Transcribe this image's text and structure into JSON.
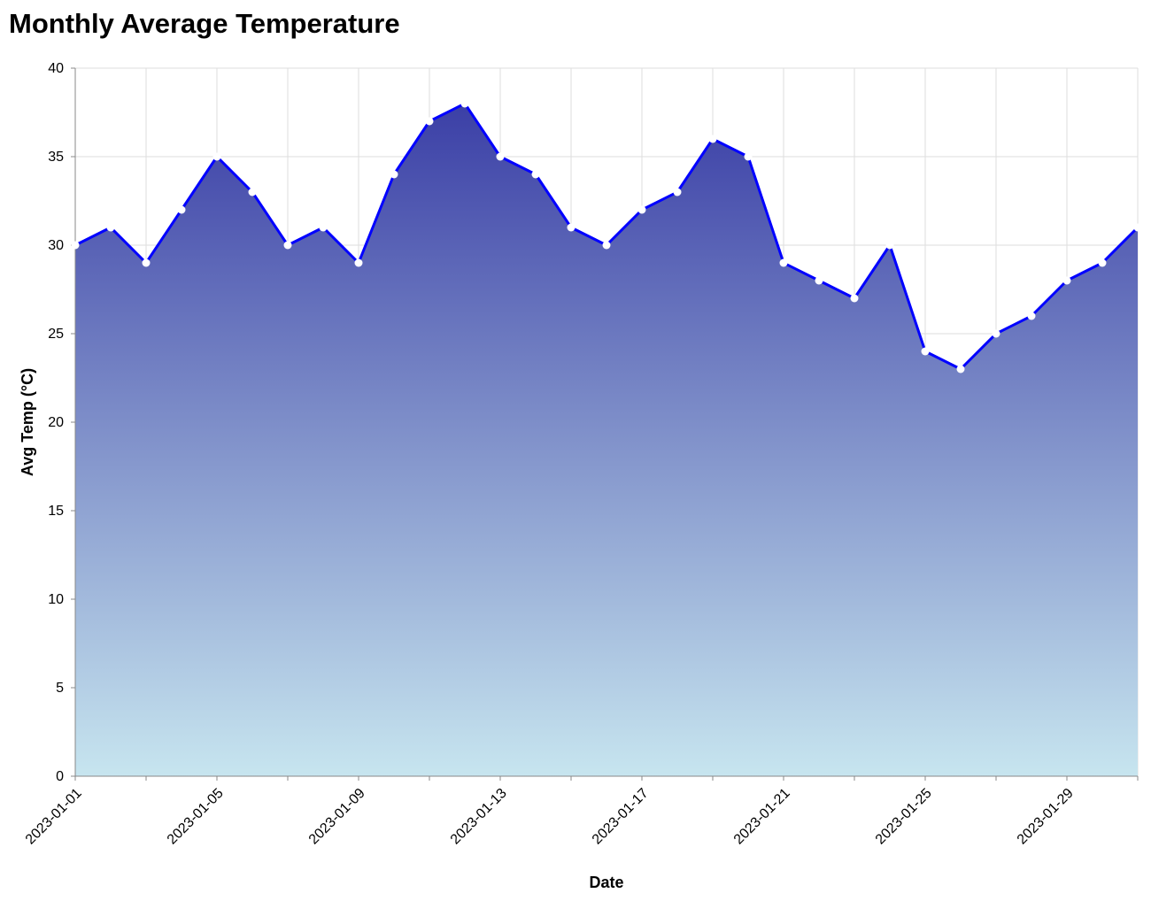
{
  "chart_data": {
    "type": "area",
    "title": "Monthly Average Temperature",
    "xlabel": "Date",
    "ylabel": "Avg Temp (°C)",
    "ylim": [
      0,
      40
    ],
    "y_ticks": [
      0,
      5,
      10,
      15,
      20,
      25,
      30,
      35,
      40
    ],
    "x_tick_labels": [
      "2023-01-01",
      "2023-01-05",
      "2023-01-09",
      "2023-01-13",
      "2023-01-17",
      "2023-01-21",
      "2023-01-25",
      "2023-01-29"
    ],
    "grid": true,
    "colors": {
      "line": "#0000ff",
      "area_top": "#3b3fa6",
      "area_bottom": "#c7e5ef",
      "point_fill": "#ffffff",
      "grid": "#dddddd",
      "axis": "#888888"
    },
    "x": [
      "2023-01-01",
      "2023-01-02",
      "2023-01-03",
      "2023-01-04",
      "2023-01-05",
      "2023-01-06",
      "2023-01-07",
      "2023-01-08",
      "2023-01-09",
      "2023-01-10",
      "2023-01-11",
      "2023-01-12",
      "2023-01-13",
      "2023-01-14",
      "2023-01-15",
      "2023-01-16",
      "2023-01-17",
      "2023-01-18",
      "2023-01-19",
      "2023-01-20",
      "2023-01-21",
      "2023-01-22",
      "2023-01-23",
      "2023-01-24",
      "2023-01-25",
      "2023-01-26",
      "2023-01-27",
      "2023-01-28",
      "2023-01-29",
      "2023-01-30",
      "2023-01-31"
    ],
    "values": [
      30,
      31,
      29,
      32,
      35,
      33,
      30,
      31,
      29,
      34,
      37,
      38,
      35,
      34,
      31,
      30,
      32,
      33,
      36,
      35,
      29,
      28,
      27,
      30,
      24,
      23,
      25,
      26,
      28,
      29,
      31
    ]
  }
}
